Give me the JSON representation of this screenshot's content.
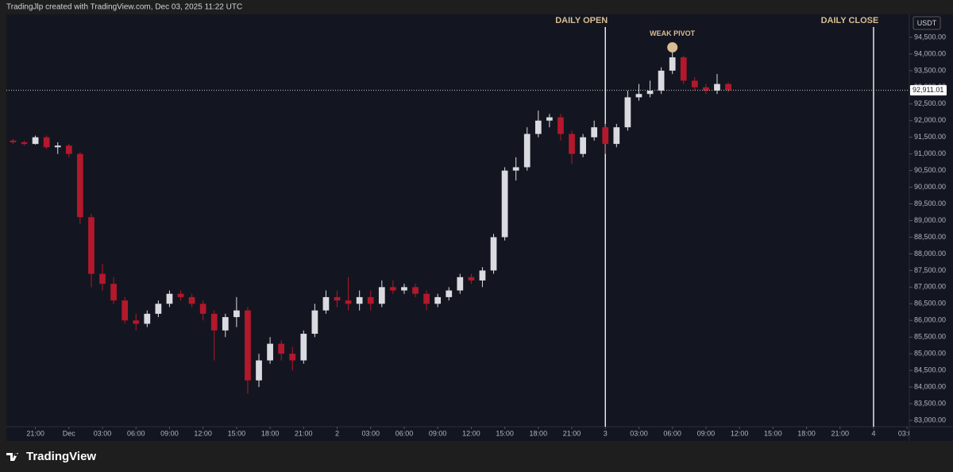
{
  "chart_data": {
    "type": "candlestick",
    "title": "TradingJlp created with TradingView.com, Dec 03, 2025 11:22 UTC",
    "currency": "USDT",
    "brand": "TradingView",
    "up_color": "#d9dbe0",
    "down_color": "#b3182c",
    "categories": [
      null,
      null,
      null,
      null,
      null,
      null,
      null,
      null,
      null,
      null,
      null,
      null,
      null,
      null,
      null,
      null,
      null,
      null,
      null,
      null,
      null,
      null,
      null,
      null,
      null,
      null,
      null,
      null,
      null,
      null,
      null,
      null,
      null,
      null,
      null,
      null,
      null,
      null,
      null,
      null,
      null,
      null,
      null,
      null,
      null,
      null,
      null,
      null,
      null,
      null,
      null,
      null,
      null,
      null,
      null,
      null,
      null,
      null,
      null,
      null,
      null,
      null,
      null,
      null,
      null
    ],
    "open": [
      91400,
      91350,
      91300,
      91500,
      91200,
      91250,
      91000,
      89100,
      87400,
      87100,
      86600,
      86000,
      85900,
      86200,
      86500,
      86800,
      86700,
      86500,
      86200,
      85700,
      86100,
      86300,
      84200,
      84800,
      85300,
      85000,
      84800,
      85600,
      86300,
      86700,
      86600,
      86500,
      86700,
      86500,
      87000,
      86900,
      87000,
      86800,
      86500,
      86700,
      86900,
      87300,
      87200,
      87500,
      88500,
      90500,
      90600,
      91600,
      92000,
      92100,
      91600,
      91000,
      91500,
      91800,
      91300,
      91800,
      92700,
      92800,
      92900,
      93500,
      93900,
      93200,
      93000,
      92900,
      93100
    ],
    "high": [
      91450,
      91400,
      91550,
      91550,
      91350,
      91300,
      91050,
      89200,
      87700,
      87300,
      86700,
      86200,
      86300,
      86600,
      86900,
      86900,
      86800,
      86600,
      86300,
      86200,
      86700,
      86400,
      85000,
      85500,
      85400,
      85200,
      85700,
      86500,
      86900,
      86900,
      87300,
      86900,
      86900,
      87200,
      87200,
      87100,
      87100,
      86900,
      86800,
      87000,
      87400,
      87400,
      87600,
      88600,
      90600,
      90900,
      91800,
      92300,
      92200,
      92200,
      91700,
      91600,
      92000,
      91900,
      91900,
      92900,
      93100,
      93200,
      93600,
      94050,
      93950,
      93300,
      93100,
      93400,
      93150
    ],
    "low": [
      91300,
      91250,
      91280,
      91150,
      91000,
      90900,
      88900,
      87000,
      86900,
      86500,
      85900,
      85700,
      85800,
      86100,
      86400,
      86600,
      86400,
      86000,
      84800,
      85500,
      85800,
      83800,
      84000,
      84700,
      84800,
      84500,
      84700,
      85500,
      86200,
      86400,
      86300,
      86300,
      86300,
      86400,
      86800,
      86800,
      86700,
      86300,
      86400,
      86600,
      86800,
      87100,
      87000,
      87400,
      88400,
      90200,
      90500,
      91500,
      91800,
      91400,
      90700,
      90900,
      91400,
      91000,
      91200,
      91700,
      92600,
      92700,
      92800,
      93400,
      93100,
      92900,
      92800,
      92800,
      92850
    ],
    "close": [
      91350,
      91300,
      91500,
      91200,
      91250,
      91000,
      89100,
      87400,
      87100,
      86600,
      86000,
      85900,
      86200,
      86500,
      86800,
      86700,
      86500,
      86200,
      85700,
      86100,
      86300,
      84200,
      84800,
      85300,
      85000,
      84800,
      85600,
      86300,
      86700,
      86600,
      86500,
      86700,
      86500,
      87000,
      86900,
      87000,
      86800,
      86500,
      86700,
      86900,
      87300,
      87200,
      87500,
      88500,
      90500,
      90600,
      91600,
      92000,
      92100,
      91600,
      91000,
      91500,
      91800,
      91300,
      91800,
      92700,
      92800,
      92900,
      93500,
      93900,
      93200,
      93000,
      92900,
      93100,
      92911.01
    ],
    "xlim": [
      -0.6,
      80.2
    ],
    "xticks": [
      {
        "value": 2,
        "label": "21:00"
      },
      {
        "value": 5,
        "label": "Dec"
      },
      {
        "value": 8,
        "label": "03:00"
      },
      {
        "value": 11,
        "label": "06:00"
      },
      {
        "value": 14,
        "label": "09:00"
      },
      {
        "value": 17,
        "label": "12:00"
      },
      {
        "value": 20,
        "label": "15:00"
      },
      {
        "value": 23,
        "label": "18:00"
      },
      {
        "value": 26,
        "label": "21:00"
      },
      {
        "value": 29,
        "label": "2"
      },
      {
        "value": 32,
        "label": "03:00"
      },
      {
        "value": 35,
        "label": "06:00"
      },
      {
        "value": 38,
        "label": "09:00"
      },
      {
        "value": 41,
        "label": "12:00"
      },
      {
        "value": 44,
        "label": "15:00"
      },
      {
        "value": 47,
        "label": "18:00"
      },
      {
        "value": 50,
        "label": "21:00"
      },
      {
        "value": 53,
        "label": "3"
      },
      {
        "value": 56,
        "label": "03:00"
      },
      {
        "value": 59,
        "label": "06:00"
      },
      {
        "value": 62,
        "label": "09:00"
      },
      {
        "value": 65,
        "label": "12:00"
      },
      {
        "value": 68,
        "label": "15:00"
      },
      {
        "value": 71,
        "label": "18:00"
      },
      {
        "value": 74,
        "label": "21:00"
      },
      {
        "value": 77,
        "label": "4"
      },
      {
        "value": 80,
        "label": "03:00"
      }
    ],
    "ylim": [
      82809,
      95192
    ],
    "yticks": [
      {
        "value": 83000,
        "label": "83,000.00"
      },
      {
        "value": 83500,
        "label": "83,500.00"
      },
      {
        "value": 84000,
        "label": "84,000.00"
      },
      {
        "value": 84500,
        "label": "84,500.00"
      },
      {
        "value": 85000,
        "label": "85,000.00"
      },
      {
        "value": 85500,
        "label": "85,500.00"
      },
      {
        "value": 86000,
        "label": "86,000.00"
      },
      {
        "value": 86500,
        "label": "86,500.00"
      },
      {
        "value": 87000,
        "label": "87,000.00"
      },
      {
        "value": 87500,
        "label": "87,500.00"
      },
      {
        "value": 88000,
        "label": "88,000.00"
      },
      {
        "value": 88500,
        "label": "88,500.00"
      },
      {
        "value": 89000,
        "label": "89,000.00"
      },
      {
        "value": 89500,
        "label": "89,500.00"
      },
      {
        "value": 90000,
        "label": "90,000.00"
      },
      {
        "value": 90500,
        "label": "90,500.00"
      },
      {
        "value": 91000,
        "label": "91,000.00"
      },
      {
        "value": 91500,
        "label": "91,500.00"
      },
      {
        "value": 92000,
        "label": "92,000.00"
      },
      {
        "value": 92500,
        "label": "92,500.00"
      },
      {
        "value": 93000,
        "label": "93,000.00"
      },
      {
        "value": 93500,
        "label": "93,500.00"
      },
      {
        "value": 94000,
        "label": "94,000.00"
      },
      {
        "value": 94500,
        "label": "94,500.00"
      }
    ],
    "last_price": {
      "value": 92911.01,
      "label": "92,911.01"
    },
    "vlines": [
      {
        "text": "DAILY OPEN",
        "x": 53
      },
      {
        "text": "DAILY CLOSE",
        "x": 77
      }
    ],
    "pivot": {
      "text": "WEAK PIVOT",
      "x": 59,
      "y": 94200,
      "color": "#d9bd93"
    }
  }
}
